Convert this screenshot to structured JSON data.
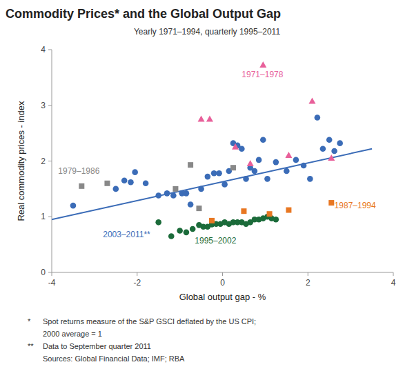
{
  "chart_data": {
    "type": "scatter",
    "title": "Commodity Prices* and the Global Output Gap",
    "subtitle": "Yearly 1971–1994, quarterly 1995–2011",
    "x_label": "Global output gap - %",
    "y_label": "Real commodity prices - index",
    "xlim": [
      -4,
      4
    ],
    "ylim": [
      0,
      4
    ],
    "xticks": [
      -4,
      -2,
      0,
      2,
      4
    ],
    "yticks": [
      0,
      1,
      2,
      3,
      4
    ],
    "grid": false,
    "series": [
      {
        "type": "scatter",
        "color": "#3B6CB7",
        "marker": "circle",
        "x": [
          -3.5,
          -2.5,
          -2.3,
          -2.15,
          -2.05,
          -1.8,
          -1.5,
          -1.3,
          -1.15,
          -0.95,
          -0.85,
          -0.75,
          -0.5,
          -0.35,
          -0.2,
          -0.08,
          0.05,
          0.15,
          0.25,
          0.35,
          0.45,
          0.55,
          0.65,
          0.75,
          0.85,
          0.95,
          1.05,
          1.25,
          1.5,
          1.72,
          1.9,
          2.05,
          2.22,
          2.35,
          2.5,
          2.62,
          2.75
        ],
        "values": [
          1.2,
          1.5,
          1.65,
          1.62,
          1.8,
          1.6,
          1.38,
          1.42,
          1.38,
          1.42,
          1.42,
          1.22,
          1.5,
          1.72,
          1.78,
          1.78,
          1.58,
          1.82,
          2.32,
          2.28,
          2.22,
          1.68,
          1.88,
          1.82,
          2.02,
          2.38,
          1.68,
          1.98,
          1.82,
          2.02,
          1.92,
          1.68,
          2.78,
          2.22,
          2.38,
          2.18,
          2.32
        ]
      },
      {
        "type": "scatter",
        "color": "#1B6B3A",
        "marker": "circle",
        "x": [
          -1.5,
          -1.2,
          -1.0,
          -0.85,
          -0.7,
          -0.55,
          -0.45,
          -0.35,
          -0.25,
          -0.15,
          -0.05,
          0.05,
          0.15,
          0.25,
          0.35,
          0.45,
          0.55,
          0.65,
          0.75,
          0.85,
          0.95,
          1.05,
          1.15,
          1.25
        ],
        "values": [
          0.9,
          0.65,
          0.75,
          0.72,
          0.78,
          0.85,
          0.82,
          0.82,
          0.86,
          0.87,
          0.87,
          0.9,
          0.87,
          0.9,
          0.9,
          0.9,
          0.87,
          0.9,
          0.95,
          0.95,
          0.97,
          1.0,
          0.97,
          0.95
        ]
      },
      {
        "type": "scatter",
        "color": "#E87722",
        "marker": "square",
        "x": [
          -0.25,
          0.5,
          1.1,
          1.55,
          2.55
        ],
        "values": [
          0.93,
          1.1,
          1.05,
          1.12,
          1.25
        ]
      },
      {
        "type": "scatter",
        "color": "#888888",
        "marker": "square",
        "x": [
          -3.3,
          -2.7,
          -1.1,
          -0.75,
          -0.55,
          0.25
        ],
        "values": [
          1.55,
          1.6,
          1.5,
          1.93,
          1.15,
          1.88
        ]
      },
      {
        "type": "scatter",
        "color": "#E8609A",
        "marker": "triangle",
        "x": [
          -0.5,
          -0.3,
          0.3,
          0.65,
          0.95,
          1.55,
          2.1,
          2.55
        ],
        "values": [
          2.75,
          2.75,
          2.25,
          1.95,
          3.72,
          2.1,
          3.07,
          2.05
        ]
      },
      {
        "type": "line",
        "color": "#3B6CB7",
        "line_style": "solid",
        "x": [
          -4.0,
          3.5
        ],
        "values": [
          0.95,
          2.22
        ]
      }
    ],
    "annotations": [
      {
        "text": "1971–1978",
        "x": 0.45,
        "y": 3.55,
        "color": "#E8609A"
      },
      {
        "text": "1979–1986",
        "x": -3.85,
        "y": 1.82,
        "color": "#888888"
      },
      {
        "text": "1987–1994",
        "x": 2.62,
        "y": 1.2,
        "color": "#E87722"
      },
      {
        "text": "1995–2002",
        "x": -0.65,
        "y": 0.57,
        "color": "#1B6B3A"
      },
      {
        "text": "2003–2011**",
        "x": -2.8,
        "y": 0.68,
        "color": "#3B6CB7"
      }
    ],
    "footnotes": [
      {
        "symbol": "*",
        "text": "Spot returns measure of the S&P GSCI deflated by the US CPI;"
      },
      {
        "text": "2000 average = 1"
      },
      {
        "symbol": "**",
        "text": "Data to September quarter 2011"
      },
      {
        "text": "Sources: Global Financial Data; IMF; RBA"
      }
    ]
  }
}
